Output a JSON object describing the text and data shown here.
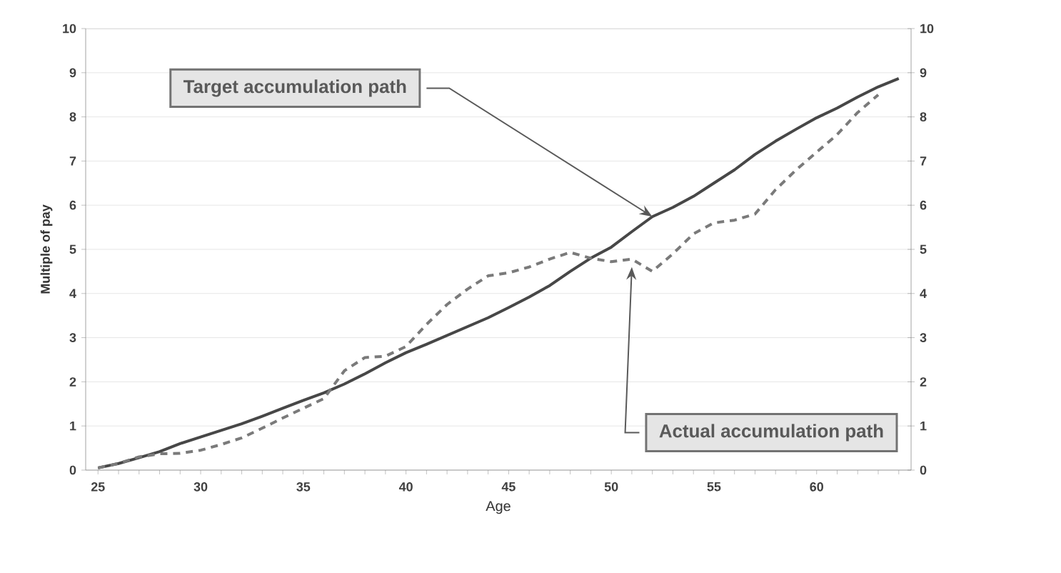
{
  "chart_data": {
    "type": "line",
    "xlabel": "Age",
    "ylabel": "Multiple of pay",
    "x": [
      25,
      26,
      27,
      28,
      29,
      30,
      31,
      32,
      33,
      34,
      35,
      36,
      37,
      38,
      39,
      40,
      41,
      42,
      43,
      44,
      45,
      46,
      47,
      48,
      49,
      50,
      51,
      52,
      53,
      54,
      55,
      56,
      57,
      58,
      59,
      60,
      61,
      62,
      63,
      64
    ],
    "series": [
      {
        "color": "#474747",
        "line_style": "solid",
        "values": [
          0.05,
          0.15,
          0.28,
          0.42,
          0.6,
          0.75,
          0.9,
          1.05,
          1.22,
          1.4,
          1.58,
          1.75,
          1.95,
          2.18,
          2.43,
          2.66,
          2.85,
          3.05,
          3.25,
          3.45,
          3.68,
          3.92,
          4.18,
          4.5,
          4.8,
          5.05,
          5.4,
          5.74,
          5.95,
          6.2,
          6.5,
          6.8,
          7.15,
          7.45,
          7.72,
          7.98,
          8.2,
          8.45,
          8.68,
          8.87
        ]
      },
      {
        "color": "#7a7a7a",
        "line_style": "dashed",
        "values": [
          0.05,
          0.15,
          0.3,
          0.37,
          0.38,
          0.45,
          0.58,
          0.73,
          0.95,
          1.18,
          1.4,
          1.62,
          2.25,
          2.55,
          2.58,
          2.8,
          3.3,
          3.75,
          4.1,
          4.4,
          4.47,
          4.6,
          4.78,
          4.93,
          4.8,
          4.72,
          4.78,
          4.5,
          4.9,
          5.35,
          5.6,
          5.66,
          5.8,
          6.35,
          6.8,
          7.2,
          7.6,
          8.1,
          8.5,
          null
        ]
      }
    ],
    "xlim": [
      24.4,
      64.6
    ],
    "xticks": [
      25,
      {
        "value": 26,
        "label": null
      },
      {
        "value": 27,
        "label": null
      },
      {
        "value": 28,
        "label": null
      },
      {
        "value": 29,
        "label": null
      },
      30,
      {
        "value": 31,
        "label": null
      },
      {
        "value": 32,
        "label": null
      },
      {
        "value": 33,
        "label": null
      },
      {
        "value": 34,
        "label": null
      },
      35,
      {
        "value": 36,
        "label": null
      },
      {
        "value": 37,
        "label": null
      },
      {
        "value": 38,
        "label": null
      },
      {
        "value": 39,
        "label": null
      },
      40,
      {
        "value": 41,
        "label": null
      },
      {
        "value": 42,
        "label": null
      },
      {
        "value": 43,
        "label": null
      },
      {
        "value": 44,
        "label": null
      },
      45,
      {
        "value": 46,
        "label": null
      },
      {
        "value": 47,
        "label": null
      },
      {
        "value": 48,
        "label": null
      },
      {
        "value": 49,
        "label": null
      },
      50,
      {
        "value": 51,
        "label": null
      },
      {
        "value": 52,
        "label": null
      },
      {
        "value": 53,
        "label": null
      },
      {
        "value": 54,
        "label": null
      },
      55,
      {
        "value": 56,
        "label": null
      },
      {
        "value": 57,
        "label": null
      },
      {
        "value": 58,
        "label": null
      },
      {
        "value": 59,
        "label": null
      },
      60,
      {
        "value": 61,
        "label": null
      },
      {
        "value": 62,
        "label": null
      },
      {
        "value": 63,
        "label": null
      },
      {
        "value": 64,
        "label": null
      }
    ],
    "ylim": [
      0,
      10
    ],
    "yticks": [
      0,
      1,
      2,
      3,
      4,
      5,
      6,
      7,
      8,
      9,
      10
    ],
    "y2lim": [
      0,
      10
    ],
    "y2ticks": [
      0,
      1,
      2,
      3,
      4,
      5,
      6,
      7,
      8,
      9,
      10
    ],
    "grid": "y",
    "marker": "none",
    "annotations": [
      {
        "text": "Target accumulation path",
        "x": 52,
        "y": 5.74
      },
      {
        "text": "Actual accumulation path",
        "x": 51,
        "y": 4.6
      }
    ]
  }
}
